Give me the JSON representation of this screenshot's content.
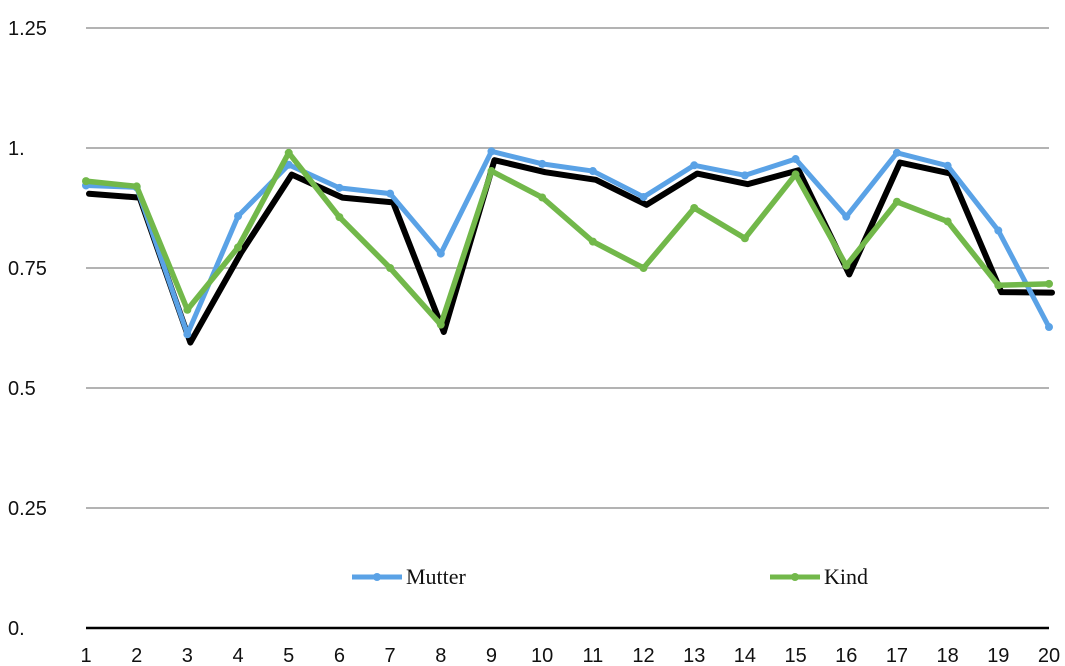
{
  "chart_data": {
    "type": "line",
    "title": "",
    "xlabel": "",
    "ylabel": "",
    "x": [
      1,
      2,
      3,
      4,
      5,
      6,
      7,
      8,
      9,
      10,
      11,
      12,
      13,
      14,
      15,
      16,
      17,
      18,
      19,
      20
    ],
    "x_tick_labels": [
      "1",
      "2",
      "3",
      "4",
      "5",
      "6",
      "7",
      "8",
      "9",
      "10",
      "11",
      "12",
      "13",
      "14",
      "15",
      "16",
      "17",
      "18",
      "19",
      "20"
    ],
    "ylim": [
      0,
      1.25
    ],
    "y_ticks": [
      0,
      0.25,
      0.5,
      0.75,
      1,
      1.25
    ],
    "y_tick_labels": [
      "0.",
      "0.25",
      "0.5",
      "0.75",
      "1.",
      "1.25"
    ],
    "grid": true,
    "legend_position": "bottom-inside",
    "series": [
      {
        "name": "Mutter",
        "color": "#5aa2e6",
        "values": [
          0.922,
          0.918,
          0.612,
          0.858,
          0.965,
          0.917,
          0.905,
          0.78,
          0.993,
          0.967,
          0.952,
          0.898,
          0.964,
          0.943,
          0.977,
          0.857,
          0.99,
          0.963,
          0.828,
          0.627
        ]
      },
      {
        "name": "Kind",
        "color": "#72b84a",
        "values": [
          0.931,
          0.92,
          0.663,
          0.793,
          0.99,
          0.856,
          0.75,
          0.632,
          0.952,
          0.897,
          0.805,
          0.75,
          0.875,
          0.812,
          0.945,
          0.755,
          0.888,
          0.847,
          0.714,
          0.717
        ]
      }
    ],
    "shadow": {
      "color": "#000000",
      "values": [
        0.913,
        0.905,
        0.603,
        0.79,
        0.953,
        0.905,
        0.895,
        0.625,
        0.983,
        0.958,
        0.942,
        0.89,
        0.955,
        0.933,
        0.962,
        0.745,
        0.978,
        0.955,
        0.708,
        0.707
      ]
    },
    "axis_color": "#000000",
    "grid_color": "#b3b3b3"
  }
}
